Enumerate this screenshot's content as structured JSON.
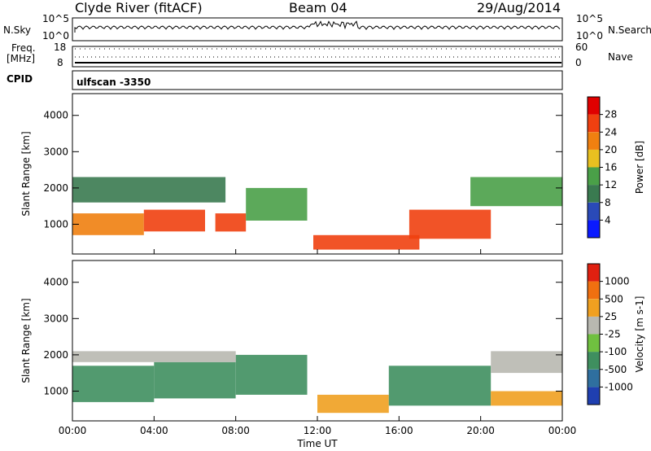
{
  "header": {
    "station": "Clyde River (fitACF)",
    "beam": "Beam 04",
    "date": "29/Aug/2014"
  },
  "strip": {
    "nsky_label": "N.Sky",
    "nsky_ticks": [
      "10^5",
      "10^0"
    ],
    "nsearch_label": "N.Search",
    "nsearch_ticks": [
      "10^5",
      "10^0"
    ],
    "freq_label": "Freq.",
    "freq_unit": "[MHz]",
    "freq_ticks": [
      "18",
      "8"
    ],
    "nave_label": "Nave",
    "nave_ticks": [
      "60",
      "0"
    ],
    "cpid_label": "CPID",
    "cpid_value": "ulfscan -3350"
  },
  "chart_data": [
    {
      "type": "heatmap",
      "name": "power",
      "ylabel": "Slant Range [km]",
      "xlabel": "",
      "x_ticks": [
        "00:00",
        "04:00",
        "08:00",
        "12:00",
        "16:00",
        "20:00",
        "00:00"
      ],
      "xlim_hours": [
        0,
        24
      ],
      "ylim_km": [
        180,
        4600
      ],
      "y_ticks": [
        1000,
        2000,
        3000,
        4000
      ],
      "colorbar": {
        "label": "Power [dB]",
        "ticks": [
          "4",
          "8",
          "12",
          "16",
          "20",
          "24",
          "28"
        ],
        "range": [
          0,
          32
        ],
        "colors": [
          "#0a1aff",
          "#2a4ab8",
          "#3a7a50",
          "#4aa048",
          "#e8c020",
          "#f08010",
          "#f04010",
          "#e00000"
        ]
      },
      "regions": [
        {
          "t0": 0.0,
          "t1": 3.5,
          "r0": 700,
          "r1": 1300,
          "value": 22
        },
        {
          "t0": 3.5,
          "t1": 6.5,
          "r0": 800,
          "r1": 1400,
          "value": 25
        },
        {
          "t0": 7.0,
          "t1": 8.5,
          "r0": 800,
          "r1": 1300,
          "value": 24
        },
        {
          "t0": 8.5,
          "t1": 11.5,
          "r0": 1100,
          "r1": 2000,
          "value": 14
        },
        {
          "t0": 11.8,
          "t1": 17.0,
          "r0": 300,
          "r1": 700,
          "value": 26
        },
        {
          "t0": 16.5,
          "t1": 20.5,
          "r0": 600,
          "r1": 1400,
          "value": 27
        },
        {
          "t0": 0.0,
          "t1": 7.5,
          "r0": 1600,
          "r1": 2300,
          "value": 9
        },
        {
          "t0": 19.5,
          "t1": 24.0,
          "r0": 1500,
          "r1": 2300,
          "value": 14
        }
      ]
    },
    {
      "type": "heatmap",
      "name": "velocity",
      "ylabel": "Slant Range [km]",
      "xlabel": "Time UT",
      "x_ticks": [
        "00:00",
        "04:00",
        "08:00",
        "12:00",
        "16:00",
        "20:00",
        "00:00"
      ],
      "xlim_hours": [
        0,
        24
      ],
      "ylim_km": [
        180,
        4600
      ],
      "y_ticks": [
        1000,
        2000,
        3000,
        4000
      ],
      "colorbar": {
        "label": "Velocity [m s-1]",
        "ticks": [
          "1000",
          "500",
          "25",
          "-25",
          "-100",
          "-500",
          "-1000"
        ],
        "range": [
          -1000,
          1000
        ],
        "colors": [
          "#1f3fb0",
          "#2f6f9f",
          "#3f8f5f",
          "#70c040",
          "#b8b8b0",
          "#f0a020",
          "#f07010",
          "#e02010"
        ]
      },
      "regions": [
        {
          "t0": 0.0,
          "t1": 4.0,
          "r0": 700,
          "r1": 1700,
          "value": -300
        },
        {
          "t0": 4.0,
          "t1": 8.0,
          "r0": 800,
          "r1": 1800,
          "value": -300
        },
        {
          "t0": 8.0,
          "t1": 11.5,
          "r0": 900,
          "r1": 2000,
          "value": -400
        },
        {
          "t0": 0.0,
          "t1": 8.0,
          "r0": 1800,
          "r1": 2100,
          "value": 0
        },
        {
          "t0": 12.0,
          "t1": 15.5,
          "r0": 400,
          "r1": 900,
          "value": 300
        },
        {
          "t0": 15.5,
          "t1": 20.5,
          "r0": 600,
          "r1": 1700,
          "value": -300
        },
        {
          "t0": 20.5,
          "t1": 24.0,
          "r0": 600,
          "r1": 1000,
          "value": 300
        },
        {
          "t0": 20.5,
          "t1": 24.0,
          "r0": 1500,
          "r1": 2100,
          "value": 0
        }
      ]
    }
  ]
}
